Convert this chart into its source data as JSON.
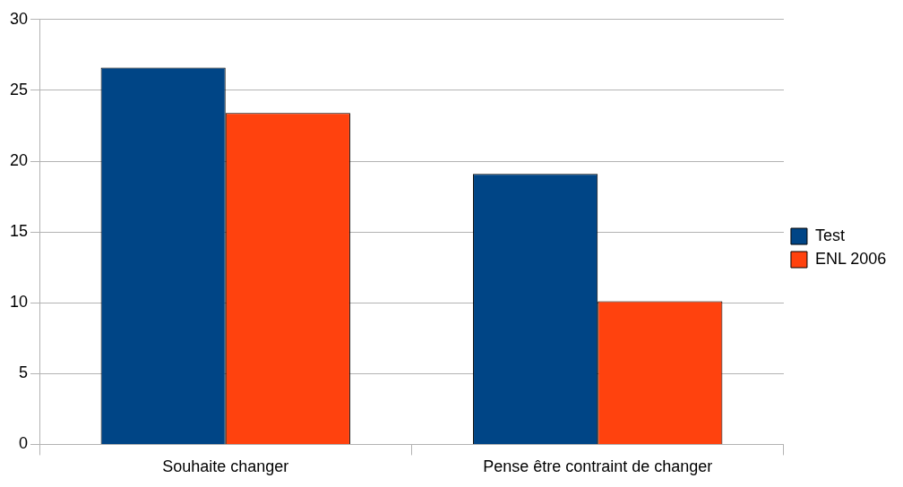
{
  "chart_data": {
    "type": "bar",
    "categories": [
      "Souhaite changer",
      "Pense être contraint de changer"
    ],
    "series": [
      {
        "name": "Test",
        "color": "#004586",
        "values": [
          26.6,
          19.1
        ]
      },
      {
        "name": "ENL 2006",
        "color": "#ff420e",
        "values": [
          23.4,
          10.1
        ]
      }
    ],
    "ylim": [
      0,
      30
    ],
    "yticks": [
      0,
      5,
      10,
      15,
      20,
      25,
      30
    ],
    "grid": "y",
    "legend": "right"
  }
}
